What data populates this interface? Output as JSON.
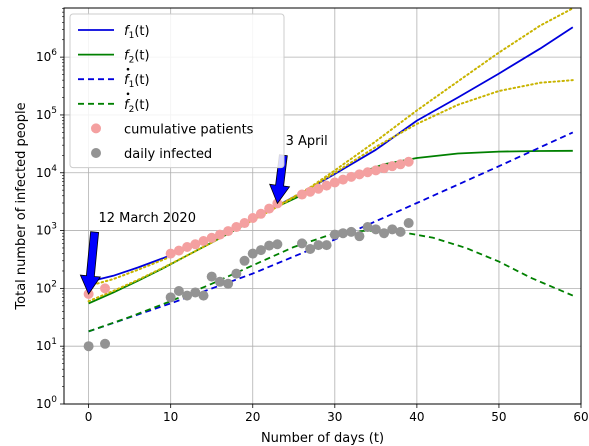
{
  "chart_data": {
    "type": "line",
    "title": "",
    "xlabel": "Number of days (t)",
    "ylabel": "Total number of infected people",
    "xlim": [
      -3,
      60
    ],
    "ylim_log10": [
      0,
      6.85
    ],
    "y_scale": "log",
    "grid": true,
    "legend_position": "top-left",
    "x_ticks": [
      0,
      10,
      20,
      30,
      40,
      50,
      60
    ],
    "x_tick_labels": [
      "0",
      "10",
      "20",
      "30",
      "40",
      "50",
      "60"
    ],
    "y_ticks_log10": [
      0,
      1,
      2,
      3,
      4,
      5,
      6
    ],
    "y_tick_labels": [
      {
        "base": "10",
        "exp": "0"
      },
      {
        "base": "10",
        "exp": "1"
      },
      {
        "base": "10",
        "exp": "2"
      },
      {
        "base": "10",
        "exp": "3"
      },
      {
        "base": "10",
        "exp": "4"
      },
      {
        "base": "10",
        "exp": "5"
      },
      {
        "base": "10",
        "exp": "6"
      }
    ],
    "series": [
      {
        "name": "f1(t)",
        "label_main": "f",
        "label_sub": "1",
        "label_tail": "(t)",
        "dot": false,
        "kind": "line",
        "style": "solid",
        "color": "#0000dd",
        "in_legend": true,
        "x": [
          0,
          3,
          6,
          9,
          12,
          15,
          18,
          21,
          23,
          26,
          30,
          35,
          40,
          45,
          50,
          55,
          59
        ],
        "y": [
          130,
          165,
          230,
          330,
          490,
          740,
          1150,
          1900,
          2700,
          4500,
          9500,
          25000,
          80000,
          200000,
          520000,
          1400000,
          3300000
        ]
      },
      {
        "name": "f2(t)",
        "label_main": "f",
        "label_sub": "2",
        "label_tail": "(t)",
        "dot": false,
        "kind": "line",
        "style": "solid",
        "color": "#008000",
        "in_legend": true,
        "x": [
          0,
          3,
          6,
          9,
          12,
          15,
          18,
          21,
          23,
          26,
          30,
          33,
          36,
          40,
          45,
          50,
          55,
          59
        ],
        "y": [
          55,
          85,
          135,
          220,
          370,
          620,
          1050,
          1850,
          2600,
          4100,
          7000,
          10000,
          14000,
          18000,
          21500,
          23200,
          23800,
          24000
        ]
      },
      {
        "name": "f1 dot(t)",
        "label_main": "f",
        "label_sub": "1",
        "label_tail": "(t)",
        "dot": true,
        "kind": "line",
        "style": "dashed",
        "color": "#0000dd",
        "in_legend": true,
        "x": [
          0,
          10,
          20,
          30,
          40,
          50,
          59
        ],
        "y": [
          18,
          55,
          180,
          700,
          3000,
          13000,
          50000
        ]
      },
      {
        "name": "f2 dot(t)",
        "label_main": "f",
        "label_sub": "2",
        "label_tail": "(t)",
        "dot": true,
        "kind": "line",
        "style": "dashed",
        "color": "#008000",
        "in_legend": true,
        "x": [
          0,
          5,
          10,
          15,
          20,
          25,
          30,
          34,
          38,
          42,
          46,
          50,
          54,
          59
        ],
        "y": [
          18,
          32,
          60,
          120,
          250,
          520,
          900,
          1000,
          950,
          750,
          500,
          290,
          150,
          75
        ]
      },
      {
        "name": "",
        "kind": "line",
        "style": "dotted",
        "color": "#c8b400",
        "in_legend": false,
        "x": [
          0,
          3,
          6,
          9,
          12,
          15,
          18,
          21,
          24,
          27,
          30,
          35,
          40,
          45,
          50,
          55,
          59
        ],
        "y": [
          110,
          145,
          210,
          310,
          470,
          730,
          1150,
          1900,
          3200,
          5600,
          11000,
          35000,
          120000,
          380000,
          1200000,
          3500000,
          7000000
        ]
      },
      {
        "name": "",
        "kind": "line",
        "style": "dotted",
        "color": "#c8b400",
        "in_legend": false,
        "x": [
          0,
          3,
          6,
          9,
          12,
          15,
          18,
          21,
          24,
          27,
          30,
          35,
          40,
          45,
          50,
          55,
          59
        ],
        "y": [
          60,
          90,
          140,
          225,
          370,
          620,
          1050,
          1800,
          3100,
          5400,
          10000,
          28000,
          70000,
          150000,
          260000,
          360000,
          400000
        ]
      },
      {
        "name": "cumulative patients",
        "kind": "scatter",
        "color": "#f4a0a0",
        "in_legend": true,
        "x": [
          0,
          2,
          10,
          11,
          12,
          13,
          14,
          15,
          16,
          17,
          18,
          19,
          20,
          21,
          22,
          23,
          26,
          27,
          28,
          29,
          30,
          31,
          32,
          33,
          34,
          35,
          36,
          37,
          38,
          39
        ],
        "y": [
          80,
          100,
          400,
          450,
          520,
          580,
          660,
          750,
          850,
          980,
          1150,
          1350,
          1650,
          1950,
          2400,
          2950,
          4200,
          4700,
          5300,
          6000,
          6800,
          7600,
          8500,
          9400,
          10200,
          11000,
          12000,
          13000,
          14000,
          15500
        ]
      },
      {
        "name": "daily infected",
        "kind": "scatter",
        "color": "#939393",
        "in_legend": true,
        "x": [
          0,
          2,
          10,
          11,
          12,
          13,
          14,
          15,
          16,
          17,
          18,
          19,
          20,
          21,
          22,
          23,
          26,
          27,
          28,
          29,
          30,
          31,
          32,
          33,
          34,
          35,
          36,
          37,
          38,
          39
        ],
        "y": [
          10,
          11,
          70,
          90,
          75,
          85,
          75,
          160,
          130,
          120,
          180,
          300,
          400,
          460,
          550,
          580,
          600,
          480,
          560,
          560,
          850,
          900,
          950,
          800,
          1150,
          1050,
          900,
          1050,
          950,
          1350
        ]
      }
    ],
    "annotations": [
      {
        "text": "12 March 2020",
        "x": 0,
        "y": 80,
        "text_x": 1.2,
        "text_y": 1400
      },
      {
        "text": "3 April",
        "x": 23,
        "y": 2950,
        "text_x": 24,
        "text_y": 30000
      }
    ]
  }
}
